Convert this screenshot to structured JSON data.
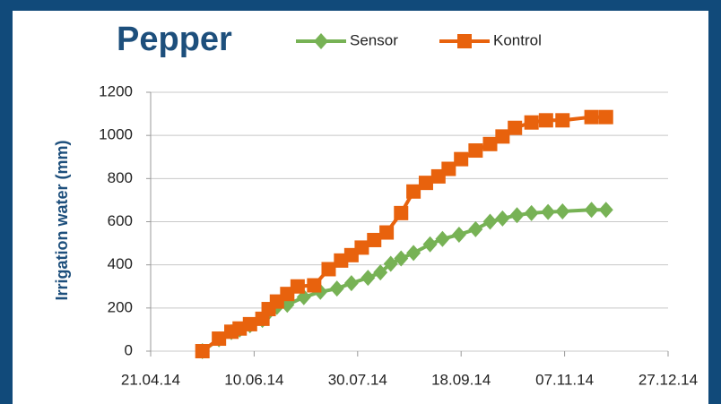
{
  "chart_data": {
    "type": "line",
    "title": "Pepper",
    "y_label": "Irrigation water (mm)",
    "xlim": [
      "2014-04-21",
      "2014-12-27"
    ],
    "xticks": [
      {
        "value": "2014-04-21",
        "label": "21.04.14"
      },
      {
        "value": "2014-06-10",
        "label": "10.06.14"
      },
      {
        "value": "2014-07-30",
        "label": "30.07.14"
      },
      {
        "value": "2014-09-18",
        "label": "18.09.14"
      },
      {
        "value": "2014-11-07",
        "label": "07.11.14"
      },
      {
        "value": "2014-12-27",
        "label": "27.12.14"
      }
    ],
    "ylim": [
      0,
      1200
    ],
    "yticks": [
      0,
      200,
      400,
      600,
      800,
      1000,
      1200
    ],
    "grid": true,
    "legend": "top",
    "series": [
      {
        "name": "Sensor",
        "color": "#77b255",
        "marker": "diamond",
        "x": [
          "2014-05-16",
          "2014-05-24",
          "2014-05-30",
          "2014-06-03",
          "2014-06-08",
          "2014-06-14",
          "2014-06-17",
          "2014-06-21",
          "2014-06-26",
          "2014-07-04",
          "2014-07-12",
          "2014-07-20",
          "2014-07-27",
          "2014-08-04",
          "2014-08-10",
          "2014-08-15",
          "2014-08-20",
          "2014-08-26",
          "2014-09-03",
          "2014-09-09",
          "2014-09-17",
          "2014-09-25",
          "2014-10-02",
          "2014-10-08",
          "2014-10-15",
          "2014-10-22",
          "2014-10-30",
          "2014-11-06",
          "2014-11-20",
          "2014-11-27"
        ],
        "values": [
          0,
          55,
          88,
          100,
          120,
          145,
          180,
          205,
          215,
          250,
          275,
          290,
          315,
          340,
          365,
          405,
          430,
          455,
          495,
          520,
          540,
          565,
          600,
          615,
          630,
          640,
          645,
          648,
          655,
          655
        ]
      },
      {
        "name": "Kontrol",
        "color": "#e8620d",
        "marker": "square",
        "x": [
          "2014-05-16",
          "2014-05-24",
          "2014-05-30",
          "2014-06-03",
          "2014-06-08",
          "2014-06-14",
          "2014-06-17",
          "2014-06-21",
          "2014-06-26",
          "2014-07-01",
          "2014-07-09",
          "2014-07-16",
          "2014-07-22",
          "2014-07-27",
          "2014-08-01",
          "2014-08-07",
          "2014-08-13",
          "2014-08-20",
          "2014-08-26",
          "2014-09-01",
          "2014-09-07",
          "2014-09-12",
          "2014-09-18",
          "2014-09-25",
          "2014-10-02",
          "2014-10-08",
          "2014-10-14",
          "2014-10-22",
          "2014-10-29",
          "2014-11-06",
          "2014-11-20",
          "2014-11-27"
        ],
        "values": [
          0,
          58,
          90,
          105,
          125,
          150,
          195,
          230,
          265,
          300,
          305,
          380,
          420,
          445,
          480,
          515,
          550,
          640,
          740,
          780,
          810,
          845,
          890,
          930,
          960,
          995,
          1035,
          1060,
          1070,
          1070,
          1085,
          1085
        ]
      }
    ]
  }
}
